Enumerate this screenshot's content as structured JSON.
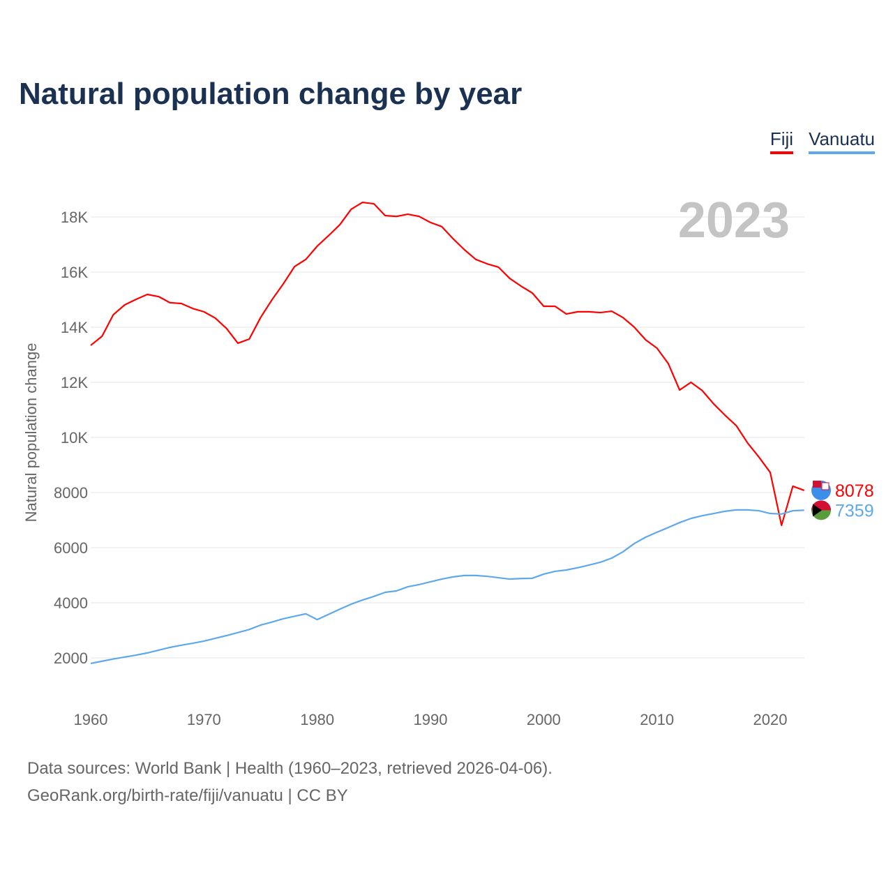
{
  "chart_data": {
    "type": "line",
    "title": "Natural population change by year",
    "ylabel": "Natural population change",
    "xlabel": "",
    "year_label": "2023",
    "xlim": [
      1960,
      2023
    ],
    "ylim": [
      1000,
      19000
    ],
    "x_ticks": [
      "1960",
      "1970",
      "1980",
      "1990",
      "2000",
      "2010",
      "2020"
    ],
    "y_ticks": [
      {
        "v": 2000,
        "label": "2000"
      },
      {
        "v": 4000,
        "label": "4000"
      },
      {
        "v": 6000,
        "label": "6000"
      },
      {
        "v": 8000,
        "label": "8000"
      },
      {
        "v": 10000,
        "label": "10K"
      },
      {
        "v": 12000,
        "label": "12K"
      },
      {
        "v": 14000,
        "label": "14K"
      },
      {
        "v": 16000,
        "label": "16K"
      },
      {
        "v": 18000,
        "label": "18K"
      }
    ],
    "grid": true,
    "legend_position": "top-right",
    "x_start": 1960,
    "series": [
      {
        "name": "Fiji",
        "color": "#ff0000",
        "end_label": "8078",
        "values": [
          13340,
          13670,
          14455,
          14810,
          15010,
          15190,
          15110,
          14890,
          14860,
          14680,
          14560,
          14330,
          13950,
          13420,
          13570,
          14350,
          14990,
          15570,
          16200,
          16460,
          16940,
          17320,
          17720,
          18280,
          18530,
          18480,
          18050,
          18020,
          18100,
          18020,
          17800,
          17650,
          17210,
          16810,
          16460,
          16300,
          16180,
          15770,
          15490,
          15240,
          14760,
          14760,
          14480,
          14560,
          14560,
          14530,
          14580,
          14350,
          14000,
          13540,
          13240,
          12680,
          11720,
          12000,
          11700,
          11220,
          10810,
          10430,
          9800,
          9290,
          8730,
          6810,
          8230,
          8078
        ]
      },
      {
        "name": "Vanuatu",
        "color": "#5ea8ec",
        "end_label": "7359",
        "values": [
          1800,
          1880,
          1960,
          2030,
          2100,
          2180,
          2280,
          2380,
          2460,
          2530,
          2610,
          2710,
          2810,
          2920,
          3030,
          3190,
          3300,
          3420,
          3510,
          3600,
          3390,
          3580,
          3770,
          3950,
          4100,
          4230,
          4380,
          4430,
          4580,
          4660,
          4760,
          4860,
          4940,
          4990,
          4990,
          4960,
          4910,
          4860,
          4880,
          4890,
          5040,
          5140,
          5190,
          5270,
          5370,
          5470,
          5620,
          5850,
          6150,
          6380,
          6560,
          6730,
          6910,
          7060,
          7160,
          7240,
          7320,
          7370,
          7370,
          7340,
          7240,
          7220,
          7340,
          7359
        ]
      }
    ]
  },
  "sources": {
    "line1": "Data sources: World Bank | Health (1960–2023, retrieved 2026-04-06).",
    "line2": "GeoRank.org/birth-rate/fiji/vanuatu | CC BY"
  }
}
